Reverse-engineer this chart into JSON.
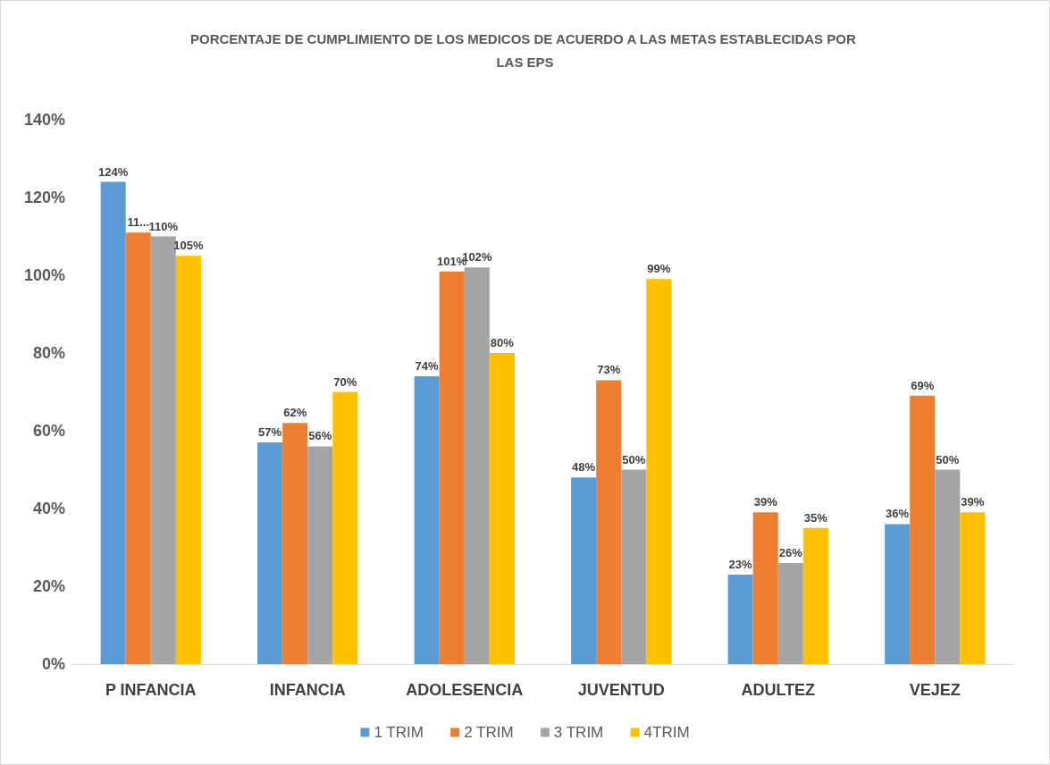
{
  "chart_data": {
    "type": "bar",
    "title": "PORCENTAJE DE CUMPLIMIENTO DE LOS MEDICOS DE ACUERDO A LAS METAS ESTABLECIDAS POR LAS EPS",
    "categories": [
      "P INFANCIA",
      "INFANCIA",
      "ADOLESENCIA",
      "JUVENTUD",
      "ADULTEZ",
      "VEJEZ"
    ],
    "series": [
      {
        "name": "1 TRIM",
        "color": "#5b9bd5",
        "values": [
          124,
          57,
          74,
          48,
          23,
          36
        ],
        "value_labels": [
          "124%",
          "57%",
          "74%",
          "48%",
          "23%",
          "36%"
        ]
      },
      {
        "name": "2 TRIM",
        "color": "#ed7d31",
        "values": [
          111,
          62,
          101,
          73,
          39,
          69
        ],
        "value_labels": [
          "11...",
          "62%",
          "101%",
          "73%",
          "39%",
          "69%"
        ]
      },
      {
        "name": "3 TRIM",
        "color": "#a5a5a5",
        "values": [
          110,
          56,
          102,
          50,
          26,
          50
        ],
        "value_labels": [
          "110%",
          "56%",
          "102%",
          "50%",
          "26%",
          "50%"
        ]
      },
      {
        "name": "4TRIM",
        "color": "#ffc000",
        "values": [
          105,
          70,
          80,
          99,
          35,
          39
        ],
        "value_labels": [
          "105%",
          "70%",
          "80%",
          "99%",
          "35%",
          "39%"
        ]
      }
    ],
    "ylim": [
      0,
      140
    ],
    "yticks": [
      {
        "value": 0,
        "label": "0%"
      },
      {
        "value": 20,
        "label": "20%"
      },
      {
        "value": 40,
        "label": "40%"
      },
      {
        "value": 60,
        "label": "60%"
      },
      {
        "value": 80,
        "label": "80%"
      },
      {
        "value": 100,
        "label": "100%"
      },
      {
        "value": 120,
        "label": "120%"
      },
      {
        "value": 140,
        "label": "140%"
      }
    ],
    "grid": false,
    "legend": "bottom"
  }
}
